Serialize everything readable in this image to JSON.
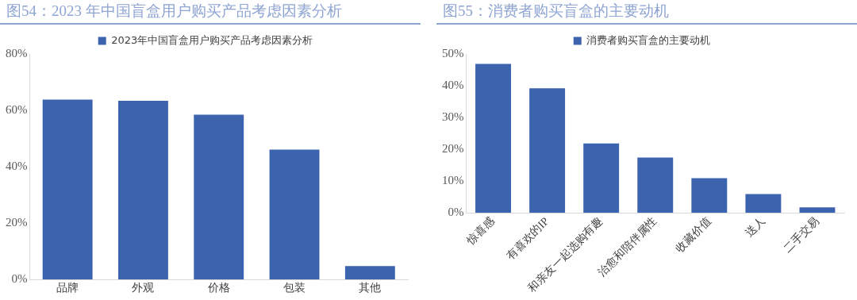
{
  "chart_data": [
    {
      "type": "bar",
      "title": "图54：2023 年中国盲盒用户购买产品考虑因素分析",
      "categories": [
        "品牌",
        "外观",
        "价格",
        "包装",
        "其他"
      ],
      "series": [
        {
          "name": "2023年中国盲盒用户购买产品考虑因素分析",
          "color": "#3c64ae",
          "values": [
            63.8,
            63.4,
            58.5,
            46.1,
            4.8
          ]
        }
      ],
      "ylim": [
        0,
        80
      ],
      "yticks": [
        {
          "value": 0,
          "label": "0%"
        },
        {
          "value": 20,
          "label": "20%"
        },
        {
          "value": 40,
          "label": "40%"
        },
        {
          "value": 60,
          "label": "60%"
        },
        {
          "value": 80,
          "label": "80%"
        }
      ],
      "grid": false,
      "legend": "top"
    },
    {
      "type": "bar",
      "title": "图55：消费者购买盲盒的主要动机",
      "categories": [
        "惊喜感",
        "有喜欢的IP",
        "和亲友一起选购有趣",
        "治愈和陪伴属性",
        "收藏价值",
        "送人",
        "二手交易"
      ],
      "series": [
        {
          "name": "消费者购买盲盒的主要动机",
          "color": "#3c64ae",
          "values": [
            46.9,
            39.2,
            21.8,
            17.4,
            10.9,
            5.9,
            1.7
          ]
        }
      ],
      "ylim": [
        0,
        50
      ],
      "yticks": [
        {
          "value": 0,
          "label": "0%"
        },
        {
          "value": 10,
          "label": "10%"
        },
        {
          "value": 20,
          "label": "20%"
        },
        {
          "value": 30,
          "label": "30%"
        },
        {
          "value": 40,
          "label": "40%"
        },
        {
          "value": 50,
          "label": "50%"
        }
      ],
      "grid": false,
      "legend": "top"
    }
  ]
}
